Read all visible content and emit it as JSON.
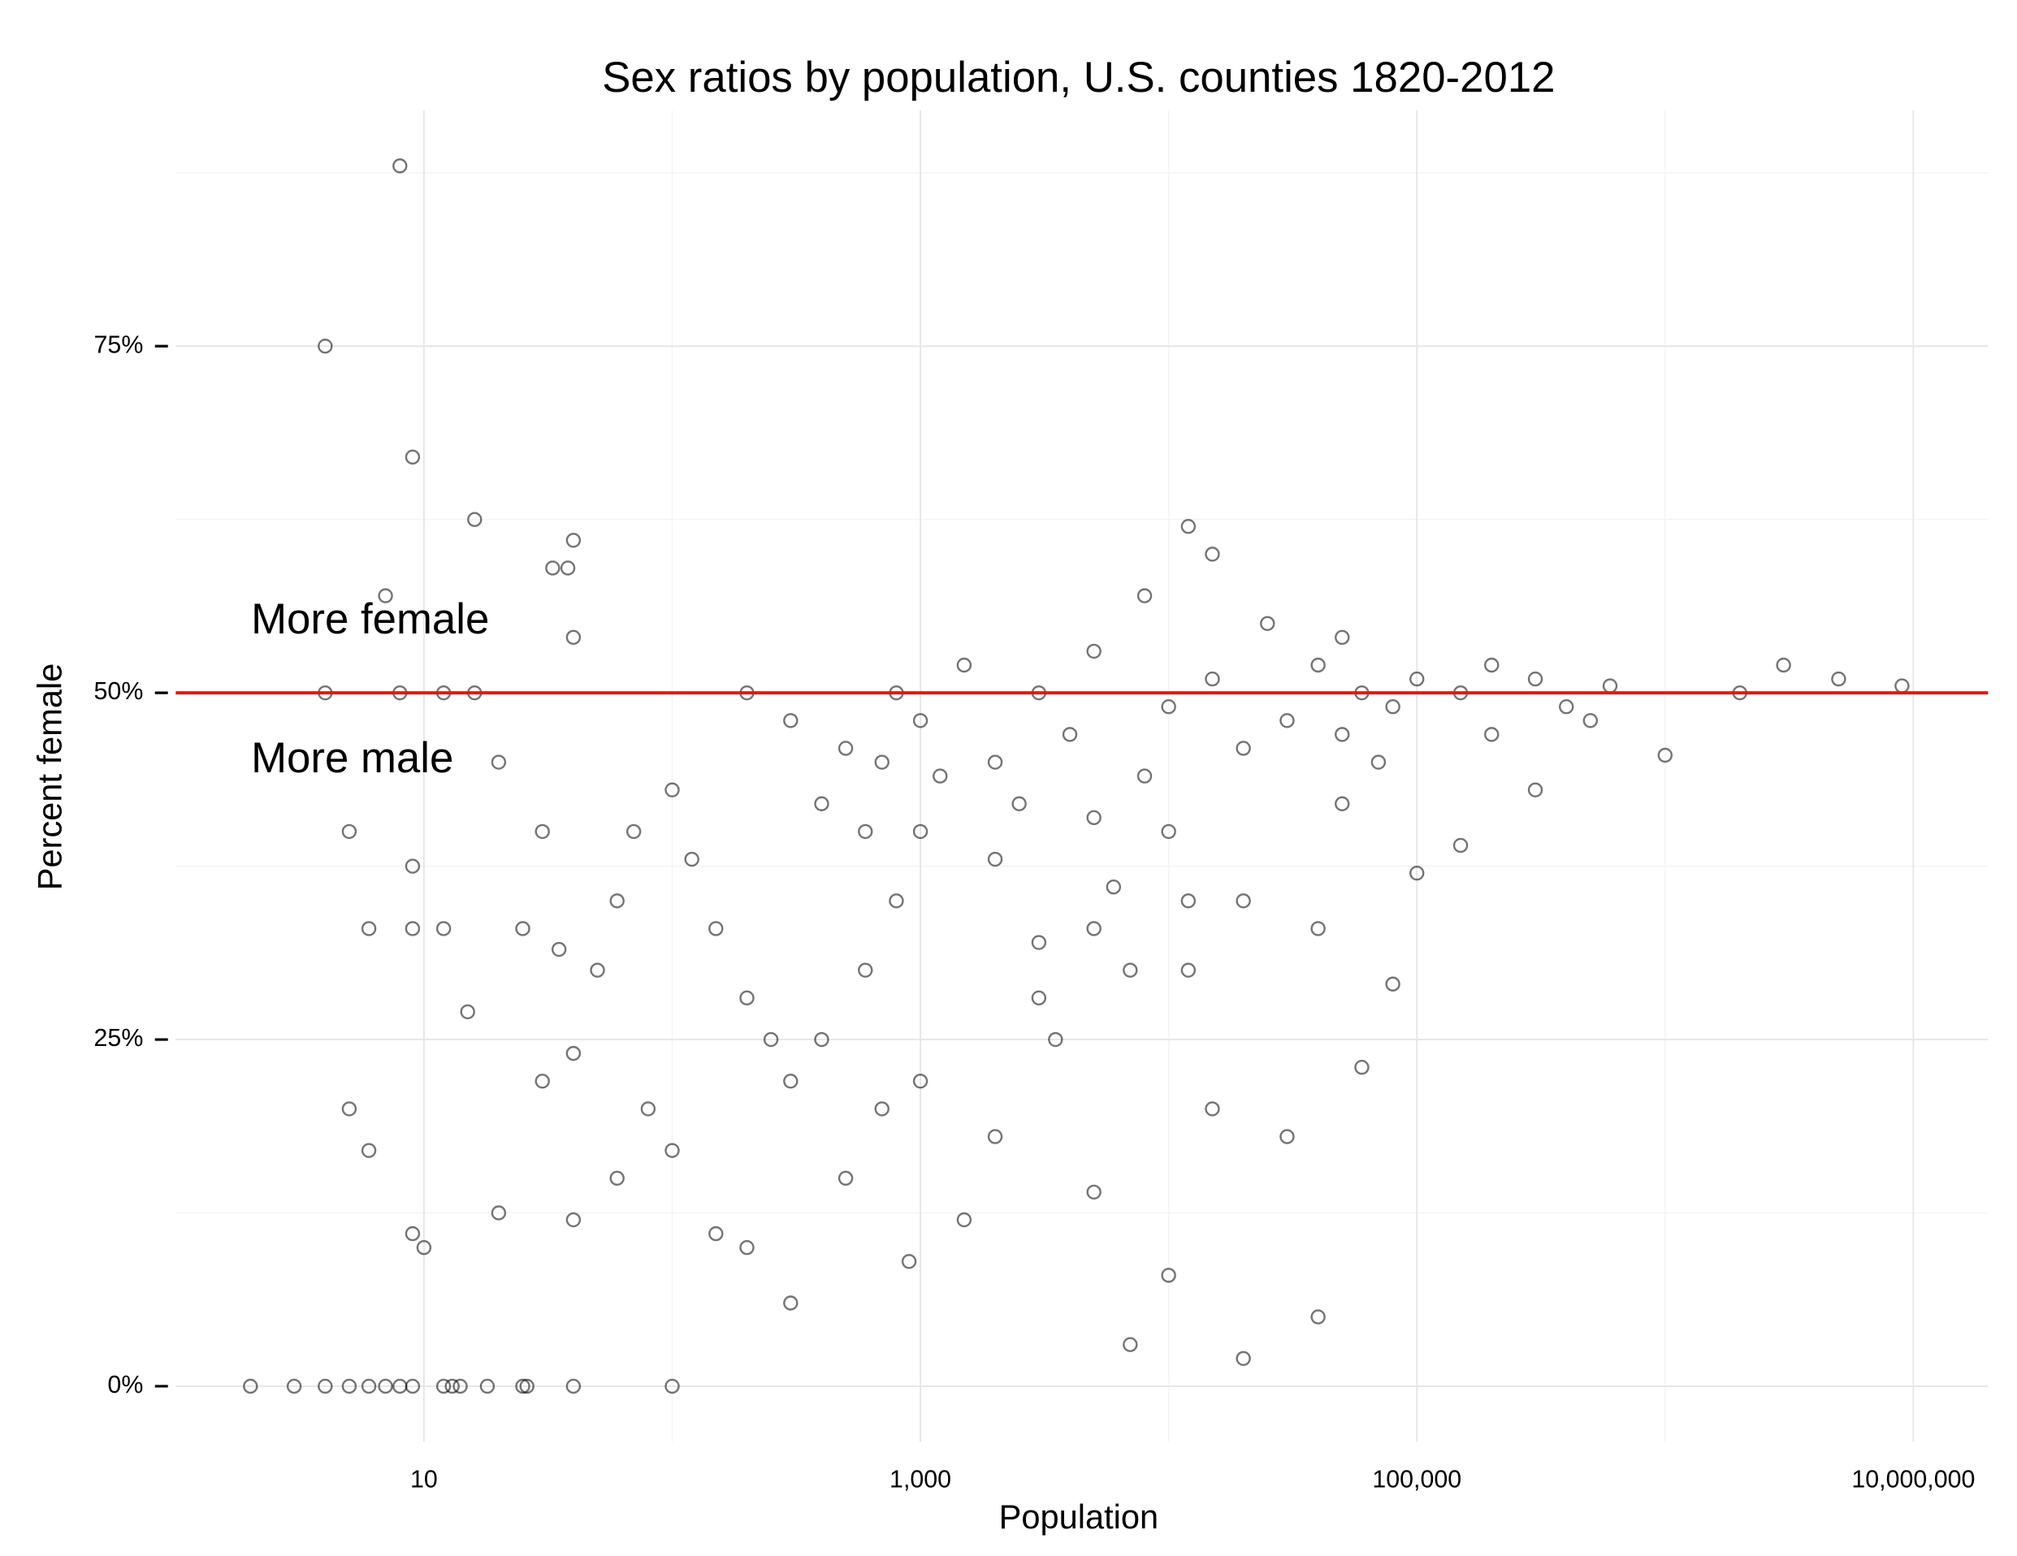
{
  "chart_data": {
    "type": "scatter",
    "title": "Sex ratios by population, U.S. counties 1820-2012",
    "x_label": "Population",
    "y_label": "Percent female",
    "log_x": true,
    "grid": true,
    "minor_grid": true,
    "color": "#000000",
    "annotations": [
      "More female",
      "More male"
    ],
    "hline": {
      "value": 50,
      "color": "#e8141a"
    },
    "xlim": [
      1,
      20000000
    ],
    "xticks": [
      10,
      {
        "value": 1000,
        "label": "1,000"
      },
      {
        "value": 100000,
        "label": "100,000"
      },
      {
        "value": 10000000,
        "label": "10,000,000"
      }
    ],
    "ylim": [
      -4,
      92
    ],
    "yticks": [
      {
        "value": 0,
        "label": "0%"
      },
      {
        "value": 25,
        "label": "25%"
      },
      {
        "value": 50,
        "label": "50%"
      },
      {
        "value": 75,
        "label": "75%"
      }
    ],
    "x": [
      8,
      4,
      9,
      16,
      40,
      38,
      33,
      7,
      4,
      8,
      16,
      12,
      40,
      5,
      9,
      6,
      9,
      12,
      5,
      6,
      9,
      10,
      2,
      3,
      4,
      5,
      6,
      7,
      8,
      9,
      12,
      13,
      14,
      18,
      25,
      26,
      40,
      100,
      20,
      30,
      25,
      35,
      30,
      40,
      50,
      60,
      70,
      100,
      120,
      150,
      200,
      250,
      300,
      80,
      60,
      40,
      20,
      15,
      100,
      200,
      300,
      150,
      500,
      400,
      600,
      700,
      800,
      900,
      1000,
      1500,
      2000,
      3000,
      5000,
      7000,
      10000,
      20000,
      15000,
      30000,
      40000,
      60000,
      80000,
      100000,
      150000,
      300000,
      500000,
      1000000,
      9000000,
      5000000,
      3000000,
      2000000,
      200,
      300,
      500,
      800,
      1000,
      1500,
      2000,
      3000,
      4000,
      5000,
      8000,
      10000,
      15000,
      20000,
      30000,
      40000,
      50000,
      60000,
      80000,
      100000,
      150000,
      200000,
      300000,
      400000,
      600000,
      1000,
      2000,
      5000,
      10000,
      20000,
      40000,
      6000,
      3000,
      12000,
      15000,
      8000,
      25000,
      50000,
      5000,
      12000,
      12000,
      7000,
      3500,
      2500,
      1200,
      700,
      400,
      600,
      50000,
      70000,
      200000
    ],
    "values": [
      88,
      75,
      67,
      62.5,
      61,
      59,
      59,
      57,
      50,
      50,
      50,
      50,
      54,
      40,
      37.5,
      33,
      33,
      33,
      20,
      17,
      11,
      10,
      0,
      0,
      0,
      0,
      0,
      0,
      0,
      0,
      0,
      0,
      0,
      0,
      0,
      0,
      0,
      0,
      45,
      40,
      33,
      31.5,
      22,
      24,
      30,
      35,
      40,
      43,
      38,
      33,
      28,
      25,
      22,
      20,
      15,
      12,
      12.5,
      27,
      17,
      10,
      6,
      11,
      15,
      25,
      30,
      20,
      35,
      9,
      22,
      12,
      18,
      28,
      14,
      3,
      8,
      2,
      20,
      18,
      5,
      23,
      29,
      37,
      39,
      43,
      48,
      45.5,
      50.5,
      51,
      52,
      50,
      50,
      48,
      46,
      50,
      48,
      52,
      45,
      50,
      47,
      53,
      44,
      49,
      51,
      46,
      48,
      52,
      42,
      50,
      49,
      51,
      50,
      52,
      51,
      49,
      50.5,
      40,
      38,
      41,
      40,
      35,
      33,
      36,
      32,
      62,
      60,
      57,
      55,
      54,
      33,
      35,
      30,
      30,
      25,
      42,
      44,
      45,
      42,
      40,
      47,
      45,
      47
    ]
  }
}
